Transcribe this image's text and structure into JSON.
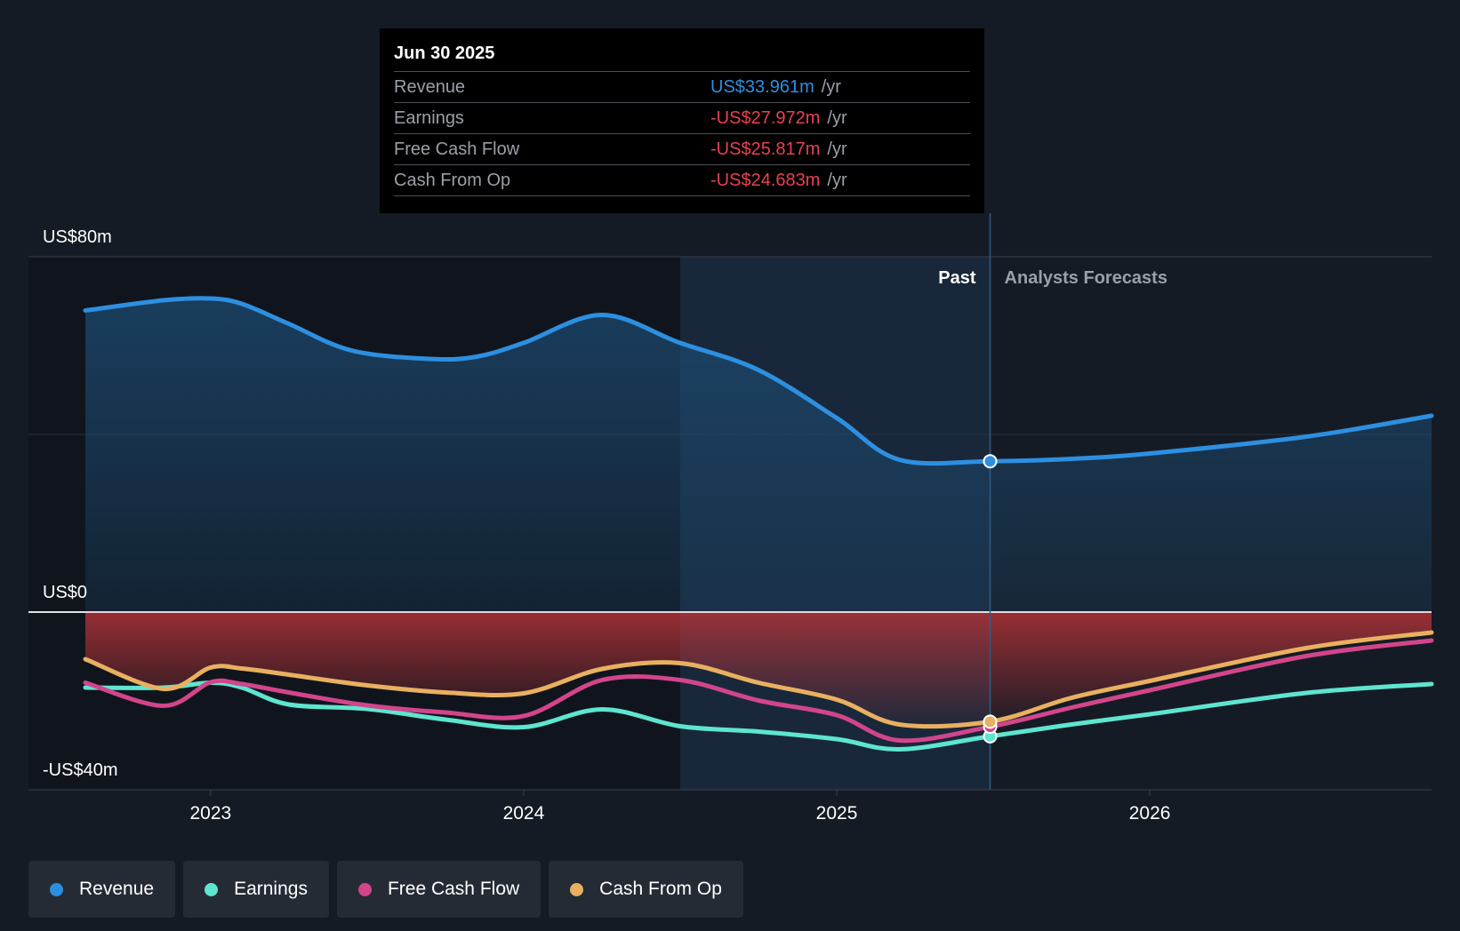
{
  "tooltip": {
    "date": "Jun 30 2025",
    "rows": [
      {
        "label": "Revenue",
        "value": "US$33.961m",
        "unit": "/yr",
        "color": "#2d8fe0"
      },
      {
        "label": "Earnings",
        "value": "-US$27.972m",
        "unit": "/yr",
        "color": "#e8414f"
      },
      {
        "label": "Free Cash Flow",
        "value": "-US$25.817m",
        "unit": "/yr",
        "color": "#e8414f"
      },
      {
        "label": "Cash From Op",
        "value": "-US$24.683m",
        "unit": "/yr",
        "color": "#e8414f"
      }
    ]
  },
  "sections": {
    "past": "Past",
    "forecast": "Analysts Forecasts"
  },
  "chart_data": {
    "type": "line",
    "y_tick_labels": [
      {
        "value": 80,
        "label": "US$80m"
      },
      {
        "value": 0,
        "label": "US$0"
      },
      {
        "value": -40,
        "label": "-US$40m"
      }
    ],
    "ylim": [
      -40,
      80
    ],
    "xlim": [
      2022.6,
      2026.9
    ],
    "x_tick_labels": [
      {
        "value": 2023,
        "label": "2023"
      },
      {
        "value": 2024,
        "label": "2024"
      },
      {
        "value": 2025,
        "label": "2025"
      },
      {
        "value": 2026,
        "label": "2026"
      }
    ],
    "highlight_start": 2024.5,
    "past_end": 2025.49,
    "series": [
      {
        "name": "Revenue",
        "color": "#2d8fe0",
        "area": "positive",
        "points": [
          [
            2022.6,
            67.9
          ],
          [
            2022.85,
            70.2
          ],
          [
            2023.0,
            70.6
          ],
          [
            2023.1,
            69.4
          ],
          [
            2023.25,
            64.9
          ],
          [
            2023.45,
            58.9
          ],
          [
            2023.7,
            57.0
          ],
          [
            2023.85,
            57.5
          ],
          [
            2024.0,
            60.6
          ],
          [
            2024.25,
            66.9
          ],
          [
            2024.5,
            60.6
          ],
          [
            2024.75,
            54.5
          ],
          [
            2025.0,
            43.7
          ],
          [
            2025.2,
            34.3
          ],
          [
            2025.49,
            33.96
          ],
          [
            2025.75,
            34.5
          ],
          [
            2026.0,
            35.7
          ],
          [
            2026.5,
            39.5
          ],
          [
            2026.9,
            44.2
          ]
        ]
      },
      {
        "name": "Earnings",
        "color": "#5ee5d0",
        "points": [
          [
            2022.6,
            -17.0
          ],
          [
            2022.85,
            -17.0
          ],
          [
            2023.0,
            -15.9
          ],
          [
            2023.1,
            -17.0
          ],
          [
            2023.25,
            -20.8
          ],
          [
            2023.5,
            -21.8
          ],
          [
            2023.75,
            -24.2
          ],
          [
            2024.0,
            -25.9
          ],
          [
            2024.25,
            -21.9
          ],
          [
            2024.5,
            -25.7
          ],
          [
            2024.75,
            -26.9
          ],
          [
            2025.0,
            -28.6
          ],
          [
            2025.2,
            -30.9
          ],
          [
            2025.49,
            -27.97
          ],
          [
            2025.75,
            -25.3
          ],
          [
            2026.0,
            -23.0
          ],
          [
            2026.5,
            -18.2
          ],
          [
            2026.9,
            -16.2
          ]
        ]
      },
      {
        "name": "Free Cash Flow",
        "color": "#d2458b",
        "points": [
          [
            2022.6,
            -15.9
          ],
          [
            2022.85,
            -21.1
          ],
          [
            2023.0,
            -15.8
          ],
          [
            2023.1,
            -16.2
          ],
          [
            2023.25,
            -18.1
          ],
          [
            2023.5,
            -21.0
          ],
          [
            2023.75,
            -22.6
          ],
          [
            2024.0,
            -23.4
          ],
          [
            2024.25,
            -15.3
          ],
          [
            2024.5,
            -15.3
          ],
          [
            2024.75,
            -19.9
          ],
          [
            2025.0,
            -23.2
          ],
          [
            2025.2,
            -28.9
          ],
          [
            2025.49,
            -25.82
          ],
          [
            2025.75,
            -21.5
          ],
          [
            2026.0,
            -17.6
          ],
          [
            2026.5,
            -9.9
          ],
          [
            2026.9,
            -6.4
          ]
        ]
      },
      {
        "name": "Cash From Op",
        "color": "#e8b060",
        "points": [
          [
            2022.6,
            -10.6
          ],
          [
            2022.85,
            -17.3
          ],
          [
            2023.0,
            -12.5
          ],
          [
            2023.1,
            -12.7
          ],
          [
            2023.25,
            -14.1
          ],
          [
            2023.5,
            -16.5
          ],
          [
            2023.75,
            -18.1
          ],
          [
            2024.0,
            -18.3
          ],
          [
            2024.25,
            -12.8
          ],
          [
            2024.5,
            -11.5
          ],
          [
            2024.75,
            -15.9
          ],
          [
            2025.0,
            -19.7
          ],
          [
            2025.2,
            -25.3
          ],
          [
            2025.49,
            -24.68
          ],
          [
            2025.75,
            -19.3
          ],
          [
            2026.0,
            -15.5
          ],
          [
            2026.5,
            -8.1
          ],
          [
            2026.9,
            -4.6
          ]
        ]
      }
    ],
    "legend": [
      "Revenue",
      "Earnings",
      "Free Cash Flow",
      "Cash From Op"
    ]
  }
}
